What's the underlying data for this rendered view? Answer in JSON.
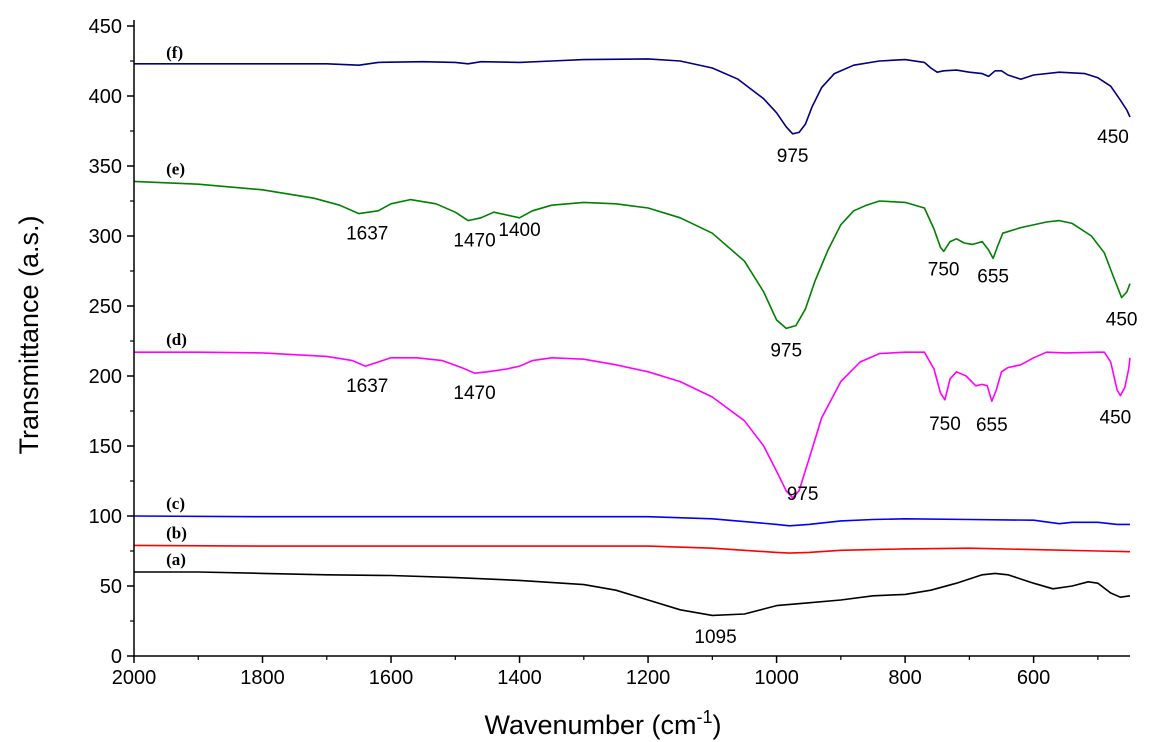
{
  "chart_data": {
    "type": "line",
    "xlabel": "Wavenumber (cm",
    "xlabel_sup": "-1",
    "xlabel_end": ")",
    "ylabel": "Transmittance (a.s.)",
    "xlim": [
      2000,
      450
    ],
    "ylim": [
      0,
      450
    ],
    "x_ticks": [
      2000,
      1800,
      1600,
      1400,
      1200,
      1000,
      800,
      600
    ],
    "y_ticks": [
      0,
      50,
      100,
      150,
      200,
      250,
      300,
      350,
      400,
      450
    ],
    "series": [
      {
        "name": "(a)",
        "color": "#000000",
        "label_x": 1950,
        "label_y": 65,
        "points": [
          [
            2000,
            60
          ],
          [
            1900,
            60
          ],
          [
            1800,
            59
          ],
          [
            1700,
            58
          ],
          [
            1600,
            57.5
          ],
          [
            1500,
            56
          ],
          [
            1400,
            54
          ],
          [
            1300,
            51
          ],
          [
            1250,
            47
          ],
          [
            1200,
            40
          ],
          [
            1150,
            33
          ],
          [
            1100,
            29
          ],
          [
            1050,
            30
          ],
          [
            1000,
            36
          ],
          [
            950,
            38
          ],
          [
            900,
            40
          ],
          [
            850,
            43
          ],
          [
            800,
            44
          ],
          [
            760,
            47
          ],
          [
            720,
            52
          ],
          [
            680,
            58
          ],
          [
            660,
            59
          ],
          [
            640,
            58
          ],
          [
            600,
            52
          ],
          [
            570,
            48
          ],
          [
            540,
            50
          ],
          [
            515,
            53
          ],
          [
            500,
            52
          ],
          [
            480,
            45
          ],
          [
            465,
            42
          ],
          [
            450,
            43
          ]
        ],
        "peaks": [
          {
            "x": 1095,
            "y": 28,
            "label": "1095",
            "dx": 0,
            "dy": 26
          }
        ]
      },
      {
        "name": "(b)",
        "color": "#ff0000",
        "label_x": 1950,
        "label_y": 84,
        "points": [
          [
            2000,
            79
          ],
          [
            1800,
            78.5
          ],
          [
            1600,
            78.5
          ],
          [
            1400,
            78.5
          ],
          [
            1200,
            78.5
          ],
          [
            1100,
            77
          ],
          [
            1000,
            74
          ],
          [
            980,
            73.5
          ],
          [
            950,
            74
          ],
          [
            900,
            75.5
          ],
          [
            800,
            76.5
          ],
          [
            700,
            77
          ],
          [
            600,
            76
          ],
          [
            500,
            75
          ],
          [
            450,
            74.5
          ]
        ],
        "peaks": []
      },
      {
        "name": "(c)",
        "color": "#0000ff",
        "label_x": 1950,
        "label_y": 105,
        "points": [
          [
            2000,
            100
          ],
          [
            1800,
            99.5
          ],
          [
            1600,
            99.5
          ],
          [
            1400,
            99.5
          ],
          [
            1200,
            99.5
          ],
          [
            1100,
            98
          ],
          [
            1000,
            94
          ],
          [
            980,
            93
          ],
          [
            950,
            94
          ],
          [
            900,
            96.5
          ],
          [
            850,
            97.5
          ],
          [
            800,
            98
          ],
          [
            700,
            97.5
          ],
          [
            600,
            97
          ],
          [
            560,
            94.5
          ],
          [
            540,
            95.5
          ],
          [
            500,
            95.5
          ],
          [
            470,
            94
          ],
          [
            450,
            94
          ]
        ],
        "peaks": [
          {
            "x": 975,
            "y": 93,
            "label": "975",
            "dx": 10,
            "dy": -26
          }
        ]
      },
      {
        "name": "(d)",
        "color": "#ff00ff",
        "label_x": 1950,
        "label_y": 222,
        "points": [
          [
            2000,
            217
          ],
          [
            1900,
            217
          ],
          [
            1800,
            216.5
          ],
          [
            1700,
            214
          ],
          [
            1660,
            211
          ],
          [
            1640,
            207
          ],
          [
            1620,
            210
          ],
          [
            1600,
            213
          ],
          [
            1560,
            213
          ],
          [
            1520,
            211
          ],
          [
            1490,
            206
          ],
          [
            1470,
            202
          ],
          [
            1450,
            203
          ],
          [
            1420,
            205
          ],
          [
            1400,
            207
          ],
          [
            1380,
            211
          ],
          [
            1350,
            213
          ],
          [
            1300,
            212
          ],
          [
            1250,
            208
          ],
          [
            1200,
            203
          ],
          [
            1150,
            196
          ],
          [
            1100,
            185
          ],
          [
            1050,
            168
          ],
          [
            1020,
            150
          ],
          [
            1000,
            132
          ],
          [
            985,
            118
          ],
          [
            975,
            113
          ],
          [
            965,
            118
          ],
          [
            950,
            140
          ],
          [
            930,
            170
          ],
          [
            900,
            196
          ],
          [
            870,
            210
          ],
          [
            840,
            216
          ],
          [
            800,
            217
          ],
          [
            770,
            217
          ],
          [
            755,
            205
          ],
          [
            745,
            188
          ],
          [
            738,
            183
          ],
          [
            730,
            198
          ],
          [
            720,
            203
          ],
          [
            705,
            200
          ],
          [
            690,
            193
          ],
          [
            680,
            194
          ],
          [
            672,
            193
          ],
          [
            665,
            182
          ],
          [
            658,
            190
          ],
          [
            650,
            203
          ],
          [
            640,
            206
          ],
          [
            620,
            208
          ],
          [
            600,
            213
          ],
          [
            580,
            217
          ],
          [
            550,
            216.5
          ],
          [
            500,
            217
          ],
          [
            490,
            217
          ],
          [
            480,
            210
          ],
          [
            470,
            190
          ],
          [
            465,
            186
          ],
          [
            458,
            192
          ],
          [
            452,
            205
          ],
          [
            450,
            213
          ]
        ],
        "peaks": [
          {
            "x": 1637,
            "y": 207,
            "label": "1637",
            "dx": 0,
            "dy": 26
          },
          {
            "x": 1470,
            "y": 202,
            "label": "1470",
            "dx": 0,
            "dy": 26
          },
          {
            "x": 975,
            "y": 113,
            "label": "975",
            "dx": 0,
            "dy": 0,
            "hidden": true
          },
          {
            "x": 738,
            "y": 183,
            "label": "750",
            "dx": 0,
            "dy": 30
          },
          {
            "x": 665,
            "y": 182,
            "label": "655",
            "dx": 0,
            "dy": 30
          },
          {
            "x": 465,
            "y": 186,
            "label": "450",
            "dx": -5,
            "dy": 28
          }
        ]
      },
      {
        "name": "(e)",
        "color": "#008000",
        "label_x": 1950,
        "label_y": 344,
        "points": [
          [
            2000,
            339
          ],
          [
            1900,
            337
          ],
          [
            1800,
            333
          ],
          [
            1720,
            327
          ],
          [
            1680,
            322
          ],
          [
            1650,
            316
          ],
          [
            1620,
            318
          ],
          [
            1600,
            323
          ],
          [
            1570,
            326
          ],
          [
            1530,
            323
          ],
          [
            1500,
            317
          ],
          [
            1480,
            311
          ],
          [
            1460,
            313
          ],
          [
            1440,
            317
          ],
          [
            1420,
            315
          ],
          [
            1400,
            313
          ],
          [
            1380,
            318
          ],
          [
            1350,
            322
          ],
          [
            1300,
            324
          ],
          [
            1250,
            323
          ],
          [
            1200,
            320
          ],
          [
            1150,
            313
          ],
          [
            1100,
            302
          ],
          [
            1050,
            282
          ],
          [
            1020,
            260
          ],
          [
            1000,
            240
          ],
          [
            985,
            234
          ],
          [
            970,
            236
          ],
          [
            955,
            248
          ],
          [
            940,
            268
          ],
          [
            920,
            290
          ],
          [
            900,
            308
          ],
          [
            880,
            318
          ],
          [
            860,
            322
          ],
          [
            840,
            325
          ],
          [
            800,
            324
          ],
          [
            770,
            320
          ],
          [
            755,
            305
          ],
          [
            745,
            292
          ],
          [
            740,
            289
          ],
          [
            730,
            296
          ],
          [
            720,
            298
          ],
          [
            708,
            295
          ],
          [
            695,
            294
          ],
          [
            680,
            296
          ],
          [
            670,
            290
          ],
          [
            663,
            284
          ],
          [
            655,
            294
          ],
          [
            648,
            302
          ],
          [
            620,
            306
          ],
          [
            580,
            310
          ],
          [
            560,
            311
          ],
          [
            540,
            309
          ],
          [
            510,
            300
          ],
          [
            490,
            288
          ],
          [
            475,
            270
          ],
          [
            463,
            256
          ],
          [
            455,
            260
          ],
          [
            450,
            266
          ]
        ],
        "peaks": [
          {
            "x": 1637,
            "y": 316,
            "label": "1637",
            "dx": 0,
            "dy": 26
          },
          {
            "x": 1470,
            "y": 311,
            "label": "1470",
            "dx": 0,
            "dy": 26
          },
          {
            "x": 1400,
            "y": 313,
            "label": "1400",
            "dx": 0,
            "dy": 18
          },
          {
            "x": 985,
            "y": 234,
            "label": "975",
            "dx": 0,
            "dy": 28
          },
          {
            "x": 740,
            "y": 289,
            "label": "750",
            "dx": 0,
            "dy": 24
          },
          {
            "x": 663,
            "y": 284,
            "label": "655",
            "dx": 0,
            "dy": 24
          },
          {
            "x": 463,
            "y": 256,
            "label": "450",
            "dx": 0,
            "dy": 28
          }
        ]
      },
      {
        "name": "(f)",
        "color": "#000080",
        "label_x": 1950,
        "label_y": 427,
        "points": [
          [
            2000,
            423
          ],
          [
            1800,
            423
          ],
          [
            1700,
            423
          ],
          [
            1650,
            422
          ],
          [
            1620,
            424
          ],
          [
            1550,
            424.5
          ],
          [
            1500,
            424
          ],
          [
            1480,
            423
          ],
          [
            1460,
            424.5
          ],
          [
            1400,
            424
          ],
          [
            1350,
            425
          ],
          [
            1300,
            426
          ],
          [
            1200,
            426.5
          ],
          [
            1150,
            425
          ],
          [
            1100,
            420
          ],
          [
            1060,
            412
          ],
          [
            1020,
            398
          ],
          [
            1000,
            388
          ],
          [
            985,
            378
          ],
          [
            975,
            373
          ],
          [
            965,
            374
          ],
          [
            955,
            380
          ],
          [
            945,
            392
          ],
          [
            930,
            406
          ],
          [
            910,
            416
          ],
          [
            880,
            422
          ],
          [
            840,
            425
          ],
          [
            800,
            426
          ],
          [
            770,
            424
          ],
          [
            760,
            420
          ],
          [
            750,
            417
          ],
          [
            740,
            418
          ],
          [
            720,
            418.5
          ],
          [
            700,
            417
          ],
          [
            680,
            416
          ],
          [
            670,
            414
          ],
          [
            660,
            418
          ],
          [
            650,
            418
          ],
          [
            640,
            415
          ],
          [
            620,
            412
          ],
          [
            600,
            415
          ],
          [
            560,
            417
          ],
          [
            520,
            416
          ],
          [
            500,
            413
          ],
          [
            480,
            407
          ],
          [
            465,
            397
          ],
          [
            455,
            390
          ],
          [
            450,
            385
          ]
        ],
        "peaks": [
          {
            "x": 975,
            "y": 373,
            "label": "975",
            "dx": 0,
            "dy": 28
          },
          {
            "x": 450,
            "y": 385,
            "label": "450",
            "dx": -17,
            "dy": 26
          }
        ]
      }
    ]
  }
}
